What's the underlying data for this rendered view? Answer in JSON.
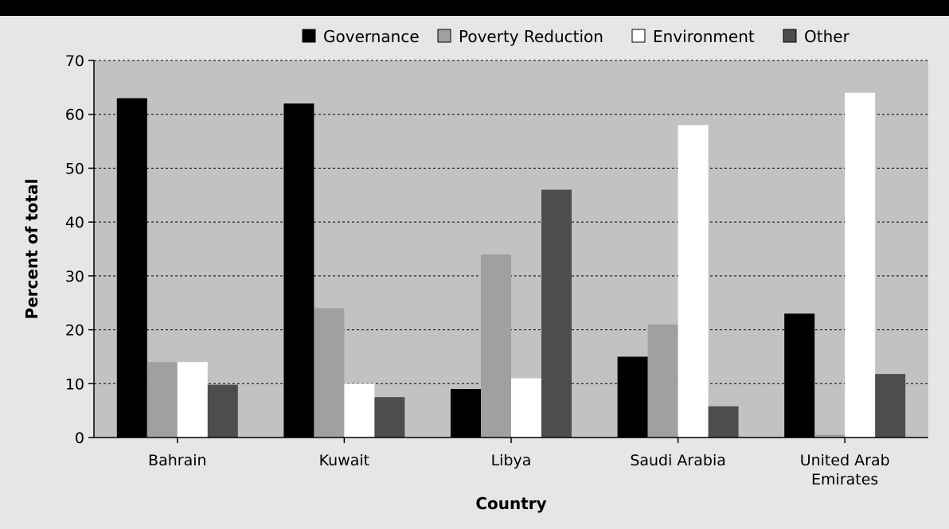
{
  "chart_data": {
    "type": "bar",
    "title": "",
    "xlabel": "Country",
    "ylabel": "Percent of total",
    "ylim": [
      0,
      70
    ],
    "yticks": [
      0,
      10,
      20,
      30,
      40,
      50,
      60,
      70
    ],
    "grid": true,
    "legend_position": "top-right",
    "categories": [
      [
        "Bahrain"
      ],
      [
        "Kuwait"
      ],
      [
        "Libya"
      ],
      [
        "Saudi Arabia"
      ],
      [
        "United Arab",
        "Emirates"
      ]
    ],
    "series": [
      {
        "name": "Governance",
        "color": "#000000",
        "values": [
          63,
          62,
          9,
          15,
          23
        ]
      },
      {
        "name": "Poverty Reduction",
        "color": "#a0a0a0",
        "values": [
          14,
          24,
          34,
          21,
          0.5
        ]
      },
      {
        "name": "Environment",
        "color": "#ffffff",
        "values": [
          14,
          10,
          11,
          58,
          64
        ]
      },
      {
        "name": "Other",
        "color": "#4d4d4d",
        "values": [
          9.8,
          7.5,
          46,
          5.8,
          11.8
        ]
      }
    ],
    "plot_background": "#c2c2c2"
  }
}
